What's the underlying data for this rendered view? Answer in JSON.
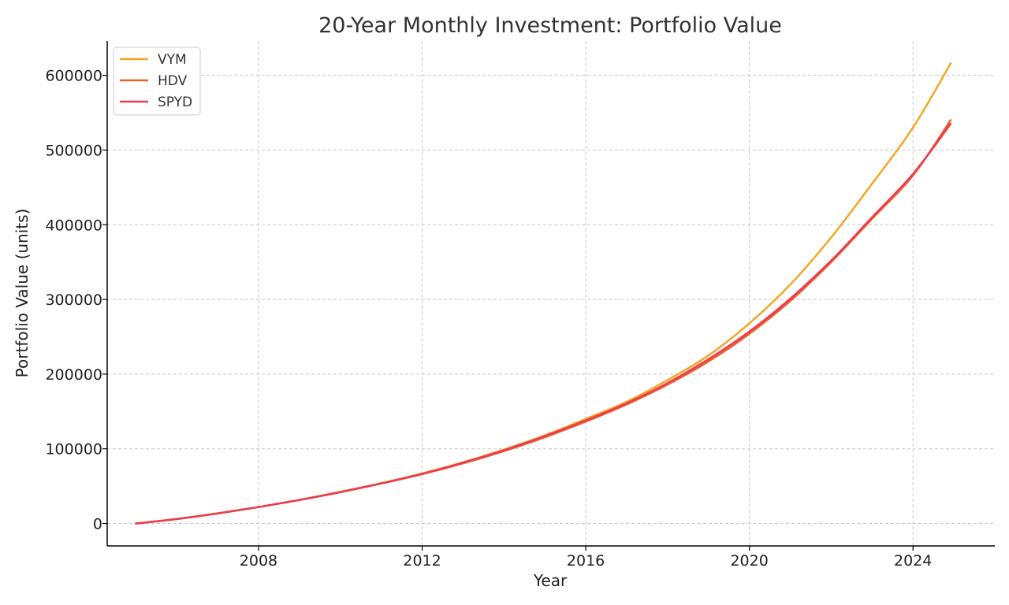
{
  "chart_data": {
    "type": "line",
    "title": "20-Year Monthly Investment: Portfolio Value",
    "xlabel": "Year",
    "ylabel": "Portfolio Value (units)",
    "xlim": [
      2004.3,
      2026.0
    ],
    "ylim": [
      -30000,
      646000
    ],
    "xticks": [
      2008,
      2012,
      2016,
      2020,
      2024
    ],
    "yticks": [
      0,
      100000,
      200000,
      300000,
      400000,
      500000,
      600000
    ],
    "grid": true,
    "legend_position": "top-left",
    "x": [
      2005,
      2006,
      2007,
      2008,
      2009,
      2010,
      2011,
      2012,
      2013,
      2014,
      2015,
      2016,
      2017,
      2018,
      2019,
      2020,
      2021,
      2022,
      2023,
      2024,
      2024.92
    ],
    "series": [
      {
        "name": "VYM",
        "color": "#f5a623",
        "values": [
          0,
          6000,
          13500,
          22000,
          31500,
          42500,
          54000,
          67000,
          82000,
          99000,
          118000,
          140000,
          163000,
          192000,
          225000,
          268000,
          320000,
          383000,
          455000,
          530000,
          616000
        ]
      },
      {
        "name": "HDV",
        "color": "#e8612c",
        "values": [
          0,
          6000,
          13500,
          22000,
          31500,
          42000,
          53500,
          66000,
          80500,
          97000,
          115500,
          136500,
          159500,
          186000,
          217000,
          254000,
          298000,
          350000,
          408000,
          466000,
          540000
        ]
      },
      {
        "name": "SPYD",
        "color": "#ee3a4e",
        "values": [
          0,
          6000,
          13500,
          22000,
          31500,
          42000,
          53700,
          66500,
          81500,
          98000,
          117000,
          138000,
          161000,
          188000,
          220000,
          257000,
          301000,
          352000,
          410000,
          468000,
          535000
        ]
      }
    ]
  }
}
